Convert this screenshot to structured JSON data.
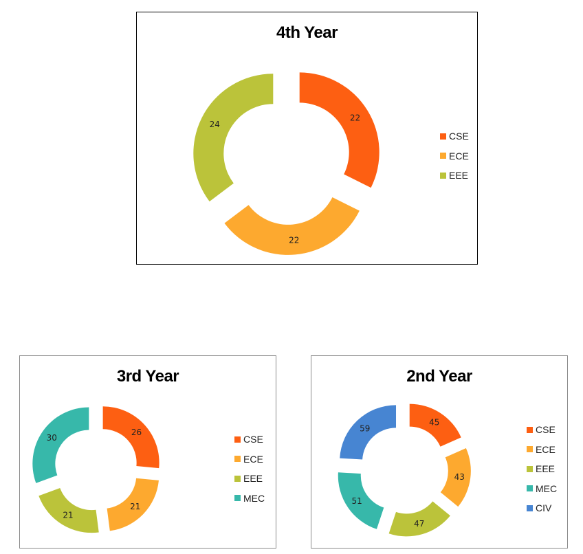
{
  "colors": {
    "CSE": "#fd5f12",
    "ECE": "#fda92f",
    "EEE": "#bbc33a",
    "MEC": "#37b8aa",
    "CIV": "#4785d2"
  },
  "chart_data": [
    {
      "type": "donut",
      "title": "4th Year",
      "categories": [
        "CSE",
        "ECE",
        "EEE"
      ],
      "values": [
        22,
        22,
        24
      ],
      "legend": "right"
    },
    {
      "type": "donut",
      "title": "3rd Year",
      "categories": [
        "CSE",
        "ECE",
        "EEE",
        "MEC"
      ],
      "values": [
        26,
        21,
        21,
        30
      ],
      "legend": "right"
    },
    {
      "type": "donut",
      "title": "2nd Year",
      "categories": [
        "CSE",
        "ECE",
        "EEE",
        "MEC",
        "CIV"
      ],
      "values": [
        45,
        43,
        47,
        51,
        59
      ],
      "legend": "right"
    }
  ]
}
